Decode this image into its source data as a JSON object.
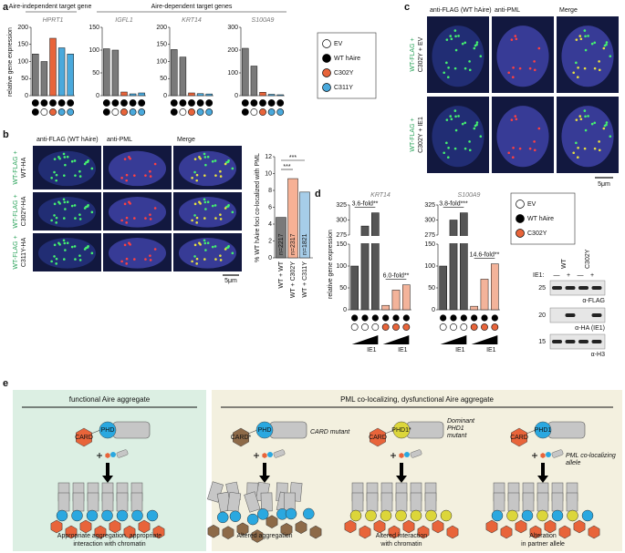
{
  "panel_a": {
    "letter": "a",
    "group_labels": [
      "Aire-independent target gene",
      "Aire-dependent target genes"
    ],
    "y_label": "relative gene expression",
    "bar_colors": [
      "#7a7a7a",
      "#7a7a7a",
      "#e8643a",
      "#4aa9dc",
      "#4aa9dc"
    ],
    "charts": [
      {
        "gene": "HPRT1",
        "values": [
          122,
          100,
          168,
          140,
          122
        ],
        "ylim": [
          0,
          200
        ],
        "yticks": [
          0,
          50,
          100,
          150,
          200
        ]
      },
      {
        "gene": "IGFL1",
        "values": [
          103,
          100,
          8,
          4,
          6
        ],
        "ylim": [
          0,
          150
        ],
        "yticks": [
          0,
          50,
          100,
          150
        ]
      },
      {
        "gene": "KRT14",
        "values": [
          135,
          113,
          8,
          6,
          5
        ],
        "ylim": [
          0,
          200
        ],
        "yticks": [
          0,
          50,
          100,
          150,
          200
        ]
      },
      {
        "gene": "S100A9",
        "values": [
          208,
          130,
          15,
          6,
          4
        ],
        "ylim": [
          0,
          300
        ],
        "yticks": [
          0,
          100,
          200,
          300
        ]
      }
    ],
    "legend": [
      {
        "label": "EV",
        "color": "#ffffff"
      },
      {
        "label": "WT hAire",
        "color": "#000000"
      },
      {
        "label": "C302Y",
        "color": "#e8643a"
      },
      {
        "label": "C311Y",
        "color": "#4aa9dc"
      }
    ]
  },
  "panel_b": {
    "letter": "b",
    "headers": [
      "anti-FLAG (WT hAire)",
      "anti-PML",
      "Merge"
    ],
    "row_labels": [
      [
        "WT-FLAG +",
        "WT-HA"
      ],
      [
        "WT-FLAG +",
        "C302Y-HA"
      ],
      [
        "WT-FLAG +",
        "C311Y-HA"
      ]
    ],
    "scale": "5μm",
    "chart": {
      "y_label": "% WT hAire foci co-localized with PML",
      "categories": [
        "WT + WT",
        "WT + C302Y",
        "WT + C311Y"
      ],
      "values": [
        4.8,
        9.4,
        7.8
      ],
      "n_labels": [
        "n=2217",
        "n=2317",
        "n=1821"
      ],
      "colors": [
        "#7a7a7a",
        "#f7b195",
        "#a6cde9"
      ],
      "ylim": [
        0,
        12
      ],
      "yticks": [
        0,
        2,
        4,
        6,
        8,
        10,
        12
      ],
      "significance": [
        "***",
        "***"
      ]
    }
  },
  "panel_c": {
    "letter": "c",
    "headers": [
      "anti-FLAG (WT hAire)",
      "anti-PML",
      "Merge"
    ],
    "row_labels": [
      [
        "WT-FLAG +",
        "C302Y + EV"
      ],
      [
        "WT-FLAG +",
        "C302Y + IE1"
      ]
    ],
    "scale": "5μm"
  },
  "panel_d": {
    "letter": "d",
    "y_label": "relative gene expression",
    "ylim": [
      0,
      325
    ],
    "axis_break": [
      150,
      275
    ],
    "yticks": [
      0,
      50,
      100,
      150,
      275,
      300,
      325
    ],
    "bar_colors": [
      "#555555",
      "#555555",
      "#555555",
      "#f3b39a",
      "#f3b39a",
      "#f3b39a"
    ],
    "charts": [
      {
        "gene": "KRT14",
        "values": [
          100,
          290,
          312,
          10,
          45,
          57
        ],
        "fold_labels": [
          "3.6-fold**",
          "6.0-fold**"
        ]
      },
      {
        "gene": "S100A9",
        "values": [
          100,
          300,
          312,
          8,
          70,
          105
        ],
        "fold_labels": [
          "3.8-fold***",
          "14.6-fold**"
        ]
      }
    ],
    "ie1_label": "IE1",
    "legend": [
      {
        "label": "EV",
        "color": "#ffffff"
      },
      {
        "label": "WT hAire",
        "color": "#000000"
      },
      {
        "label": "C302Y",
        "color": "#e8643a"
      }
    ],
    "western": {
      "lanes": [
        "WT",
        "C302Y"
      ],
      "ie1_row_label": "IE1:",
      "ie1_states": [
        "—",
        "+",
        "—",
        "+"
      ],
      "blots": [
        "α-FLAG",
        "α-HA (IE1)",
        "α-H3"
      ],
      "mw_markers": [
        25,
        20,
        15
      ]
    }
  },
  "panel_e": {
    "letter": "e",
    "left_title": "functional Aire aggregate",
    "right_title": "PML co-localizing, dysfunctional Aire aggregate",
    "domains": {
      "card": "CARD",
      "phd": "PHD",
      "card_mutant": "CARD*",
      "phd1": "PHD1",
      "phd1_mutant": "PHD1*"
    },
    "annotations": [
      [
        "CARD mutant"
      ],
      [
        "Dominant",
        "PHD1",
        "mutant"
      ],
      [
        "PML co-localizing",
        "allele"
      ]
    ],
    "captions": [
      [
        "Appropriate aggregation, appropriate",
        "interaction with chromatin"
      ],
      [
        "Altered aggregation"
      ],
      [
        "Altered interaction",
        "with chromatin"
      ],
      [
        "Alteration",
        "in partner allele"
      ]
    ]
  }
}
